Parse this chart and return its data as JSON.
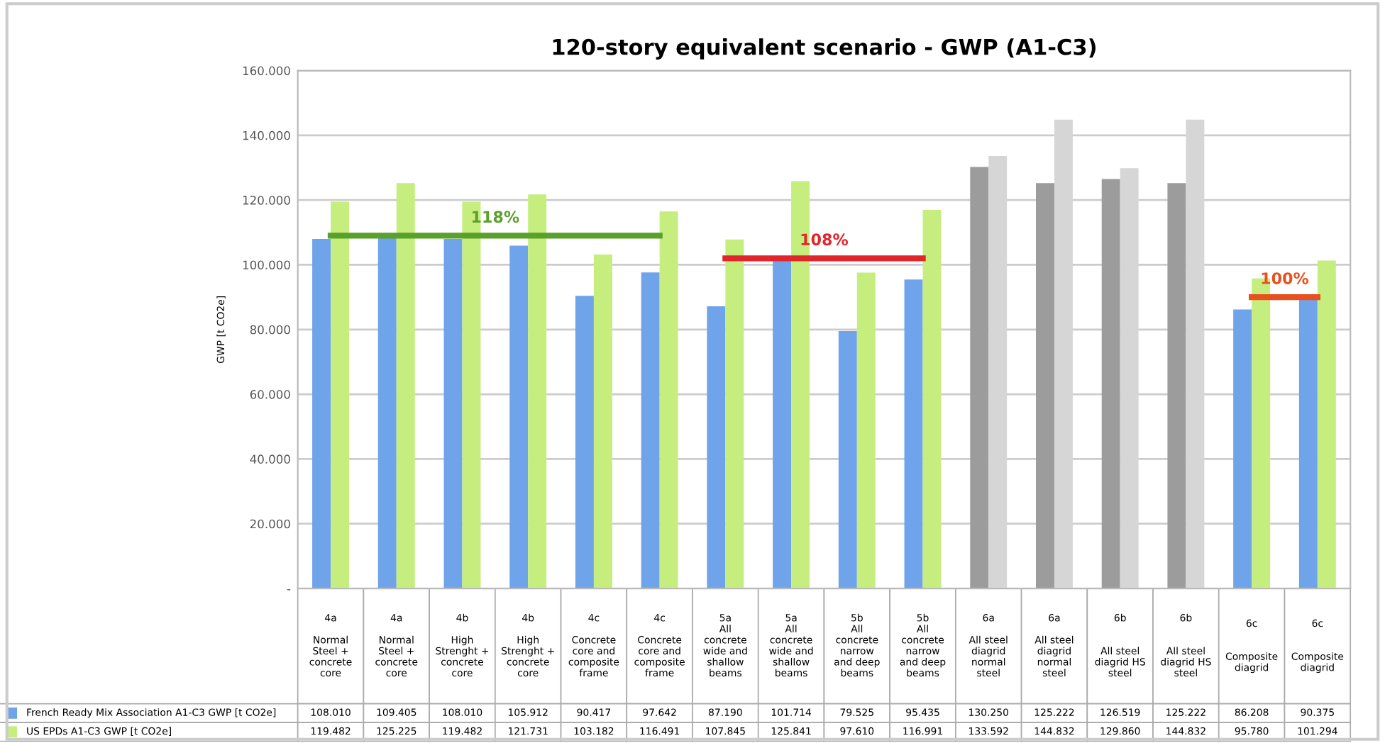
{
  "chart_data": {
    "type": "bar",
    "title": "120-story equivalent scenario - GWP (A1-C3)",
    "ylabel": "GWP [t CO2e]",
    "categories": [
      "4a\n\nNormal\nSteel +\nconcrete\ncore",
      "4a\n\nNormal\nSteel +\nconcrete\ncore",
      "4b\n\nHigh\nStrenght +\nconcrete\ncore",
      "4b\n\nHigh\nStrenght +\nconcrete\ncore",
      "4c\n\nConcrete\ncore and\ncomposite\nframe",
      "4c\n\nConcrete\ncore and\ncomposite\nframe",
      "5a\nAll\nconcrete\nwide and\nshallow\nbeams",
      "5a\nAll\nconcrete\nwide and\nshallow\nbeams",
      "5b\nAll\nconcrete\nnarrow\nand deep\nbeams",
      "5b\nAll\nconcrete\nnarrow\nand deep\nbeams",
      "6a\n\nAll steel\ndiagrid\nnormal\nsteel",
      "6a\n\nAll steel\ndiagrid\nnormal\nsteel",
      "6b\n\n\nAll steel\ndiagrid HS\nsteel",
      "6b\n\n\nAll steel\ndiagrid HS\nsteel",
      "6c\n\n\nComposite\ndiagrid",
      "6c\n\n\nComposite\ndiagrid"
    ],
    "series": [
      {
        "name": "French Ready Mix Association A1-C3 GWP [t CO2e]",
        "color": "#6fa3ea",
        "colors": [
          "#6fa3ea",
          "#6fa3ea",
          "#6fa3ea",
          "#6fa3ea",
          "#6fa3ea",
          "#6fa3ea",
          "#6fa3ea",
          "#6fa3ea",
          "#6fa3ea",
          "#6fa3ea",
          "#9c9c9c",
          "#9c9c9c",
          "#9c9c9c",
          "#9c9c9c",
          "#6fa3ea",
          "#6fa3ea"
        ],
        "values": [
          108010,
          109405,
          108010,
          105912,
          90417,
          97642,
          87190,
          101714,
          79525,
          95435,
          130250,
          125222,
          126519,
          125222,
          86208,
          90375
        ],
        "value_labels": [
          "108.010",
          "109.405",
          "108.010",
          "105.912",
          "90.417",
          "97.642",
          "87.190",
          "101.714",
          "79.525",
          "95.435",
          "130.250",
          "125.222",
          "126.519",
          "125.222",
          "86.208",
          "90.375"
        ]
      },
      {
        "name": "US EPDs A1-C3 GWP [t CO2e]",
        "color": "#c6ee7e",
        "colors": [
          "#c6ee7e",
          "#c6ee7e",
          "#c6ee7e",
          "#c6ee7e",
          "#c6ee7e",
          "#c6ee7e",
          "#c6ee7e",
          "#c6ee7e",
          "#c6ee7e",
          "#c6ee7e",
          "#d6d6d6",
          "#d6d6d6",
          "#d6d6d6",
          "#d6d6d6",
          "#c6ee7e",
          "#c6ee7e"
        ],
        "values": [
          119482,
          125225,
          119482,
          121731,
          103182,
          116491,
          107845,
          125841,
          97610,
          116991,
          133592,
          144832,
          129860,
          144832,
          95780,
          101294
        ],
        "value_labels": [
          "119.482",
          "125.225",
          "119.482",
          "121.731",
          "103.182",
          "116.491",
          "107.845",
          "125.841",
          "97.610",
          "116.991",
          "133.592",
          "144.832",
          "129.860",
          "144.832",
          "95.780",
          "101.294"
        ]
      },
      {
        "name": "118%",
        "type": "line",
        "color": "#5aa02c",
        "values": [
          109000,
          null,
          null,
          null,
          null,
          109000,
          null,
          null,
          null,
          null,
          null,
          null,
          null,
          null,
          null,
          null
        ]
      },
      {
        "name": "108%",
        "type": "line",
        "color": "#e0262a",
        "values": [
          null,
          null,
          null,
          null,
          null,
          null,
          102000,
          null,
          null,
          102000,
          null,
          null,
          null,
          null,
          null,
          null
        ]
      },
      {
        "name": "100%",
        "type": "line",
        "color": "#e8501e",
        "values": [
          null,
          null,
          null,
          null,
          null,
          null,
          null,
          null,
          null,
          null,
          null,
          null,
          null,
          null,
          90000,
          90000
        ]
      }
    ],
    "ylim": [
      0,
      160000
    ],
    "yticks": [
      {
        "value": 0,
        "label": "-"
      },
      {
        "value": 20000,
        "label": "20.000"
      },
      {
        "value": 40000,
        "label": "40.000"
      },
      {
        "value": 60000,
        "label": "60.000"
      },
      {
        "value": 80000,
        "label": "80.000"
      },
      {
        "value": 100000,
        "label": "100.000"
      },
      {
        "value": 120000,
        "label": "120.000"
      },
      {
        "value": 140000,
        "label": "140.000"
      },
      {
        "value": 160000,
        "label": "160.000"
      }
    ],
    "grid": "y",
    "legend": "bottom left"
  }
}
